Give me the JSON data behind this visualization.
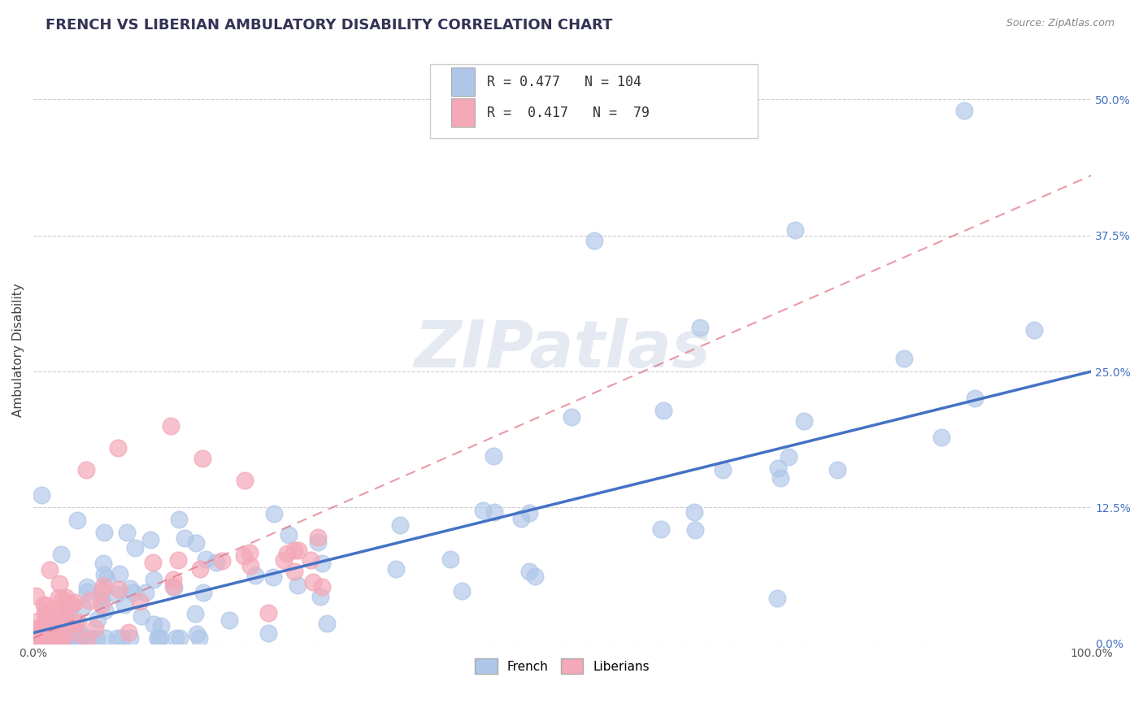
{
  "title": "FRENCH VS LIBERIAN AMBULATORY DISABILITY CORRELATION CHART",
  "source": "Source: ZipAtlas.com",
  "ylabel": "Ambulatory Disability",
  "xlim": [
    0.0,
    1.0
  ],
  "ylim": [
    0.0,
    0.54
  ],
  "ytick_labels": [
    "0.0%",
    "12.5%",
    "25.0%",
    "37.5%",
    "50.0%"
  ],
  "ytick_values": [
    0.0,
    0.125,
    0.25,
    0.375,
    0.5
  ],
  "french_R": 0.477,
  "french_N": 104,
  "liberian_R": 0.417,
  "liberian_N": 79,
  "french_color": "#aec6e8",
  "liberian_color": "#f4a8b8",
  "french_line_color": "#4472c4",
  "liberian_line_color": "#e07080",
  "background_color": "#ffffff",
  "grid_color": "#cccccc",
  "title_color": "#333355",
  "watermark": "ZIPatlas",
  "legend_french_label": "French",
  "legend_liberian_label": "Liberians"
}
